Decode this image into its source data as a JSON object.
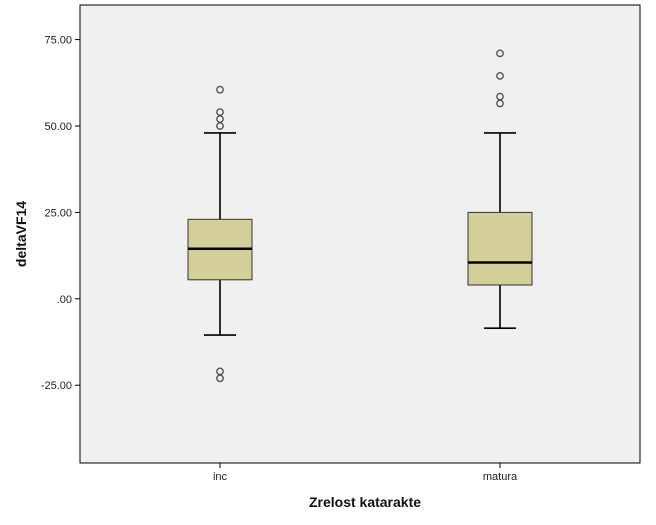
{
  "chart_data": {
    "type": "boxplot",
    "xlabel": "Zrelost katarakte",
    "ylabel": "deltaVF14",
    "ylim": [
      -47.5,
      85
    ],
    "yticks": [
      75,
      50,
      25,
      0,
      -25
    ],
    "ytick_labels": [
      "75.00",
      "50.00",
      "25.00",
      ".00",
      "-25.00"
    ],
    "categories": [
      "inc",
      "matura"
    ],
    "boxes": [
      {
        "category": "inc",
        "whisker_low": -10.5,
        "q1": 5.5,
        "median": 14.5,
        "q3": 23,
        "whisker_high": 48,
        "outliers": [
          60.5,
          54,
          52,
          50,
          -21,
          -23
        ]
      },
      {
        "category": "matura",
        "whisker_low": -8.5,
        "q1": 4,
        "median": 10.5,
        "q3": 25,
        "whisker_high": 48,
        "outliers": [
          71,
          64.5,
          58.5,
          56.5
        ]
      }
    ],
    "box_fill": "#d4cf98",
    "plot_background": "#f0f0f0",
    "grid": false
  }
}
